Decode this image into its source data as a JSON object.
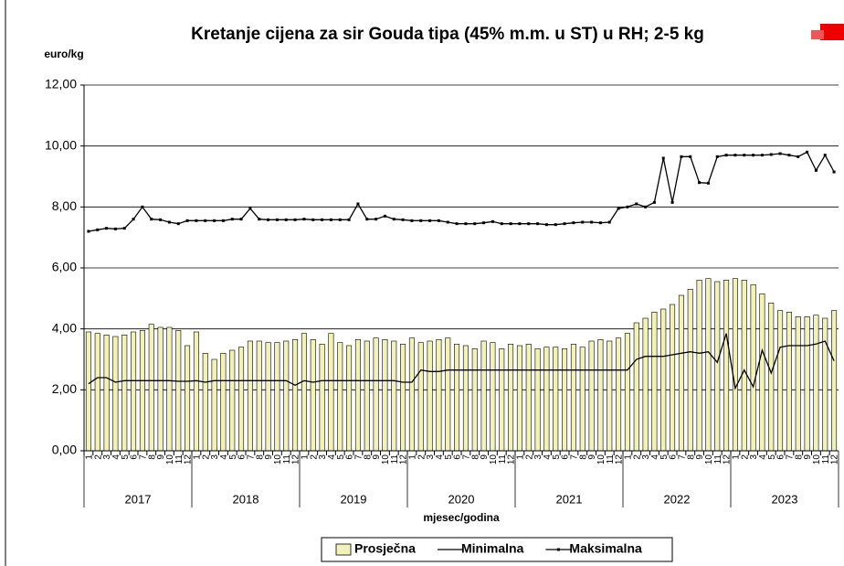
{
  "chart_data": {
    "type": "bar-line",
    "title": "Kretanje cijena za sir Gouda tipa  (45% m.m. u ST) u RH; 2-5 kg",
    "y_label": "euro/kg",
    "x_label": "mjesec/godina",
    "categories": [
      "1",
      "2",
      "3",
      "4",
      "5",
      "6",
      "7",
      "8",
      "9",
      "10",
      "11",
      "12",
      "1",
      "2",
      "3",
      "4",
      "5",
      "6",
      "7",
      "8",
      "9",
      "10",
      "11",
      "12",
      "1",
      "2",
      "3",
      "4",
      "5",
      "6",
      "7",
      "8",
      "9",
      "10",
      "11",
      "12",
      "1",
      "2",
      "3",
      "4",
      "5",
      "6",
      "7",
      "8",
      "9",
      "10",
      "11",
      "12",
      "1",
      "2",
      "3",
      "4",
      "5",
      "6",
      "7",
      "8",
      "9",
      "10",
      "11",
      "12",
      "1",
      "2",
      "3",
      "4",
      "5",
      "6",
      "7",
      "8",
      "9",
      "10",
      "11",
      "12",
      "1",
      "2",
      "3",
      "4",
      "5",
      "6",
      "7",
      "8",
      "9",
      "10",
      "11",
      "12"
    ],
    "years": [
      "2017",
      "2018",
      "2019",
      "2020",
      "2021",
      "2022",
      "2023"
    ],
    "ylim": [
      0,
      12
    ],
    "yticks": [
      {
        "value": 0,
        "label": "0,00"
      },
      {
        "value": 2,
        "label": "2,00"
      },
      {
        "value": 4,
        "label": "4,00"
      },
      {
        "value": 6,
        "label": "6,00"
      },
      {
        "value": 8,
        "label": "8,00"
      },
      {
        "value": 10,
        "label": "10,00"
      },
      {
        "value": 12,
        "label": "12,00"
      }
    ],
    "grid": true,
    "legend": "bottom",
    "series": [
      {
        "name": "Prosječna",
        "kind": "bar",
        "color": "#f2f2b8",
        "values": [
          3.9,
          3.85,
          3.8,
          3.75,
          3.8,
          3.9,
          3.95,
          4.15,
          4.05,
          4.05,
          3.95,
          3.45,
          3.9,
          3.2,
          3.0,
          3.2,
          3.3,
          3.4,
          3.6,
          3.6,
          3.55,
          3.55,
          3.6,
          3.65,
          3.85,
          3.65,
          3.5,
          3.85,
          3.55,
          3.45,
          3.65,
          3.6,
          3.7,
          3.65,
          3.6,
          3.5,
          3.7,
          3.55,
          3.6,
          3.65,
          3.7,
          3.5,
          3.45,
          3.35,
          3.6,
          3.55,
          3.35,
          3.5,
          3.45,
          3.5,
          3.35,
          3.4,
          3.4,
          3.35,
          3.5,
          3.4,
          3.6,
          3.65,
          3.6,
          3.7,
          3.85,
          4.2,
          4.35,
          4.55,
          4.65,
          4.8,
          5.1,
          5.3,
          5.6,
          5.65,
          5.55,
          5.6,
          5.65,
          5.6,
          5.45,
          5.15,
          4.85,
          4.6,
          4.55,
          4.4,
          4.4,
          4.45,
          4.35,
          4.6
        ]
      },
      {
        "name": "Minimalna",
        "kind": "line",
        "color": "#000000",
        "values": [
          2.2,
          2.4,
          2.4,
          2.25,
          2.3,
          2.3,
          2.3,
          2.3,
          2.3,
          2.3,
          2.28,
          2.28,
          2.3,
          2.25,
          2.3,
          2.3,
          2.3,
          2.3,
          2.3,
          2.3,
          2.3,
          2.3,
          2.3,
          2.15,
          2.3,
          2.25,
          2.3,
          2.3,
          2.3,
          2.3,
          2.3,
          2.3,
          2.3,
          2.3,
          2.3,
          2.25,
          2.25,
          2.65,
          2.6,
          2.6,
          2.65,
          2.65,
          2.65,
          2.65,
          2.65,
          2.65,
          2.65,
          2.65,
          2.65,
          2.65,
          2.65,
          2.65,
          2.65,
          2.65,
          2.65,
          2.65,
          2.65,
          2.65,
          2.65,
          2.65,
          2.65,
          3.0,
          3.1,
          3.1,
          3.1,
          3.15,
          3.2,
          3.25,
          3.2,
          3.25,
          2.9,
          3.85,
          2.05,
          2.65,
          2.1,
          3.3,
          2.55,
          3.4,
          3.45,
          3.45,
          3.45,
          3.5,
          3.6,
          2.95
        ]
      },
      {
        "name": "Maksimalna",
        "kind": "line-marker",
        "color": "#000000",
        "values": [
          7.2,
          7.25,
          7.3,
          7.28,
          7.3,
          7.6,
          8.0,
          7.6,
          7.58,
          7.5,
          7.45,
          7.55,
          7.55,
          7.55,
          7.55,
          7.55,
          7.6,
          7.6,
          7.95,
          7.6,
          7.58,
          7.58,
          7.58,
          7.58,
          7.6,
          7.58,
          7.58,
          7.58,
          7.58,
          7.58,
          8.1,
          7.6,
          7.6,
          7.7,
          7.6,
          7.58,
          7.55,
          7.55,
          7.55,
          7.55,
          7.5,
          7.45,
          7.45,
          7.45,
          7.48,
          7.52,
          7.45,
          7.45,
          7.45,
          7.45,
          7.45,
          7.42,
          7.42,
          7.45,
          7.48,
          7.5,
          7.5,
          7.48,
          7.5,
          7.95,
          8.0,
          8.1,
          8.0,
          8.15,
          9.6,
          8.15,
          9.65,
          9.65,
          8.8,
          8.78,
          9.65,
          9.7,
          9.7,
          9.7,
          9.7,
          9.7,
          9.72,
          9.75,
          9.7,
          9.65,
          9.8,
          9.2,
          9.7,
          9.15
        ]
      }
    ]
  }
}
